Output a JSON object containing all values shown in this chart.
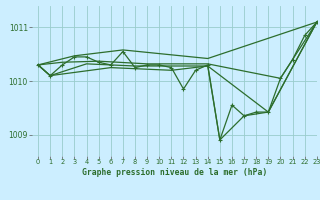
{
  "xlabel": "Graphe pression niveau de la mer (hPa)",
  "ylim": [
    1008.6,
    1011.4
  ],
  "xlim": [
    -0.5,
    23
  ],
  "yticks": [
    1009,
    1010,
    1011
  ],
  "xticks": [
    0,
    1,
    2,
    3,
    4,
    5,
    6,
    7,
    8,
    9,
    10,
    11,
    12,
    13,
    14,
    15,
    16,
    17,
    18,
    19,
    20,
    21,
    22,
    23
  ],
  "bg_color": "#cceeff",
  "grid_color": "#99cccc",
  "line_color": "#2d6e2d",
  "series_main": [
    [
      0,
      1010.3
    ],
    [
      1,
      1010.1
    ],
    [
      2,
      1010.3
    ],
    [
      3,
      1010.45
    ],
    [
      4,
      1010.45
    ],
    [
      5,
      1010.35
    ],
    [
      6,
      1010.3
    ],
    [
      7,
      1010.55
    ],
    [
      8,
      1010.25
    ],
    [
      9,
      1010.3
    ],
    [
      10,
      1010.3
    ],
    [
      11,
      1010.25
    ],
    [
      12,
      1009.85
    ],
    [
      13,
      1010.2
    ],
    [
      14,
      1010.3
    ],
    [
      15,
      1008.9
    ],
    [
      16,
      1009.55
    ],
    [
      17,
      1009.35
    ],
    [
      18,
      1009.42
    ],
    [
      19,
      1009.42
    ],
    [
      20,
      1010.05
    ],
    [
      21,
      1010.4
    ],
    [
      22,
      1010.85
    ],
    [
      23,
      1011.1
    ]
  ],
  "series_upper": [
    [
      0,
      1010.3
    ],
    [
      3,
      1010.47
    ],
    [
      7,
      1010.58
    ],
    [
      14,
      1010.42
    ],
    [
      23,
      1011.1
    ]
  ],
  "series_mid1": [
    [
      0,
      1010.3
    ],
    [
      2,
      1010.35
    ],
    [
      5,
      1010.37
    ],
    [
      9,
      1010.32
    ],
    [
      14,
      1010.32
    ],
    [
      20,
      1010.05
    ],
    [
      23,
      1011.1
    ]
  ],
  "series_mid2": [
    [
      0,
      1010.3
    ],
    [
      1,
      1010.1
    ],
    [
      4,
      1010.32
    ],
    [
      8,
      1010.28
    ],
    [
      14,
      1010.28
    ],
    [
      19,
      1009.42
    ],
    [
      23,
      1011.1
    ]
  ],
  "series_lower": [
    [
      0,
      1010.3
    ],
    [
      1,
      1010.1
    ],
    [
      6,
      1010.25
    ],
    [
      11,
      1010.2
    ],
    [
      14,
      1010.28
    ],
    [
      15,
      1008.9
    ],
    [
      17,
      1009.35
    ],
    [
      19,
      1009.42
    ],
    [
      23,
      1011.1
    ]
  ]
}
